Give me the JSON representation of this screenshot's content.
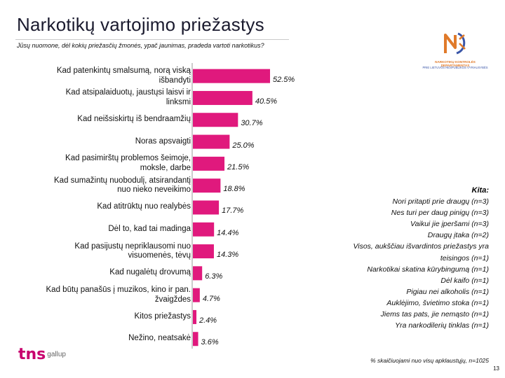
{
  "header": {
    "title": "Narkotikų vartojimo priežastys",
    "subtitle": "Jūsų nuomone, dėl kokių priežasčių žmonės, ypač jaunimas, pradeda vartoti narkotikus?"
  },
  "logo": {
    "line1": "NARKOTIKŲ KONTROLĖS DEPARTAMENTAS",
    "line2": "PRIE LIETUVOS RESPUBLIKOS VYRIAUSYBĖS"
  },
  "chart_data": {
    "type": "bar",
    "orientation": "horizontal",
    "bar_color": "#e0197d",
    "categories": [
      "Kad patenkintų smalsumą, norą viską išbandyti",
      "Kad atsipalaiduotų, jaustųsi laisvi ir linksmi",
      "Kad neišsiskirtų iš bendraamžių",
      "Noras apsvaigti",
      "Kad pasimirštų problemos šeimoje, moksle, darbe",
      "Kad sumažintų nuobodulį, atsirandantį nuo nieko neveikimo",
      "Kad atitrūktų nuo realybės",
      "Dėl to, kad tai madinga",
      "Kad pasijustų nepriklausomi nuo visuomenės, tėvų",
      "Kad nugalėtų drovumą",
      "Kad būtų panašūs į muzikos, kino ir pan. žvaigždes",
      "Kitos priežastys",
      "Nežino, neatsakė"
    ],
    "values": [
      52.5,
      40.5,
      30.7,
      25.0,
      21.5,
      18.8,
      17.7,
      14.4,
      14.3,
      6.3,
      4.7,
      2.4,
      3.6
    ],
    "value_labels": [
      "52.5%",
      "40.5%",
      "30.7%",
      "25.0%",
      "21.5%",
      "18.8%",
      "17.7%",
      "14.4%",
      "14.3%",
      "6.3%",
      "4.7%",
      "2.4%",
      "3.6%"
    ],
    "unit": "%",
    "xlim": [
      0,
      60
    ]
  },
  "kita": {
    "title": "Kita:",
    "items": [
      "Nori pritapti prie draugų (n=3)",
      "Nes turi per daug pinigų (n=3)",
      "Vaikui jie įperšami (n=3)",
      "Draugų įtaka (n=2)",
      "Visos, aukščiau išvardintos priežastys yra",
      "teisingos (n=1)",
      "Narkotikai skatina kūrybingumą (n=1)",
      "Dėl kaifo (n=1)",
      "Pigiau nei alkoholis (n=1)",
      "Auklėjimo, švietimo stoka (n=1)",
      "Jiems tas pats, jie nemąsto (n=1)",
      "Yra narkodilerių tinklas (n=1)"
    ]
  },
  "footer": {
    "footnote": "% skaičiuojami nuo visų apklaustųjų, n=1025",
    "page_number": "13",
    "brand_mark": "tns",
    "brand_name": "gallup"
  }
}
